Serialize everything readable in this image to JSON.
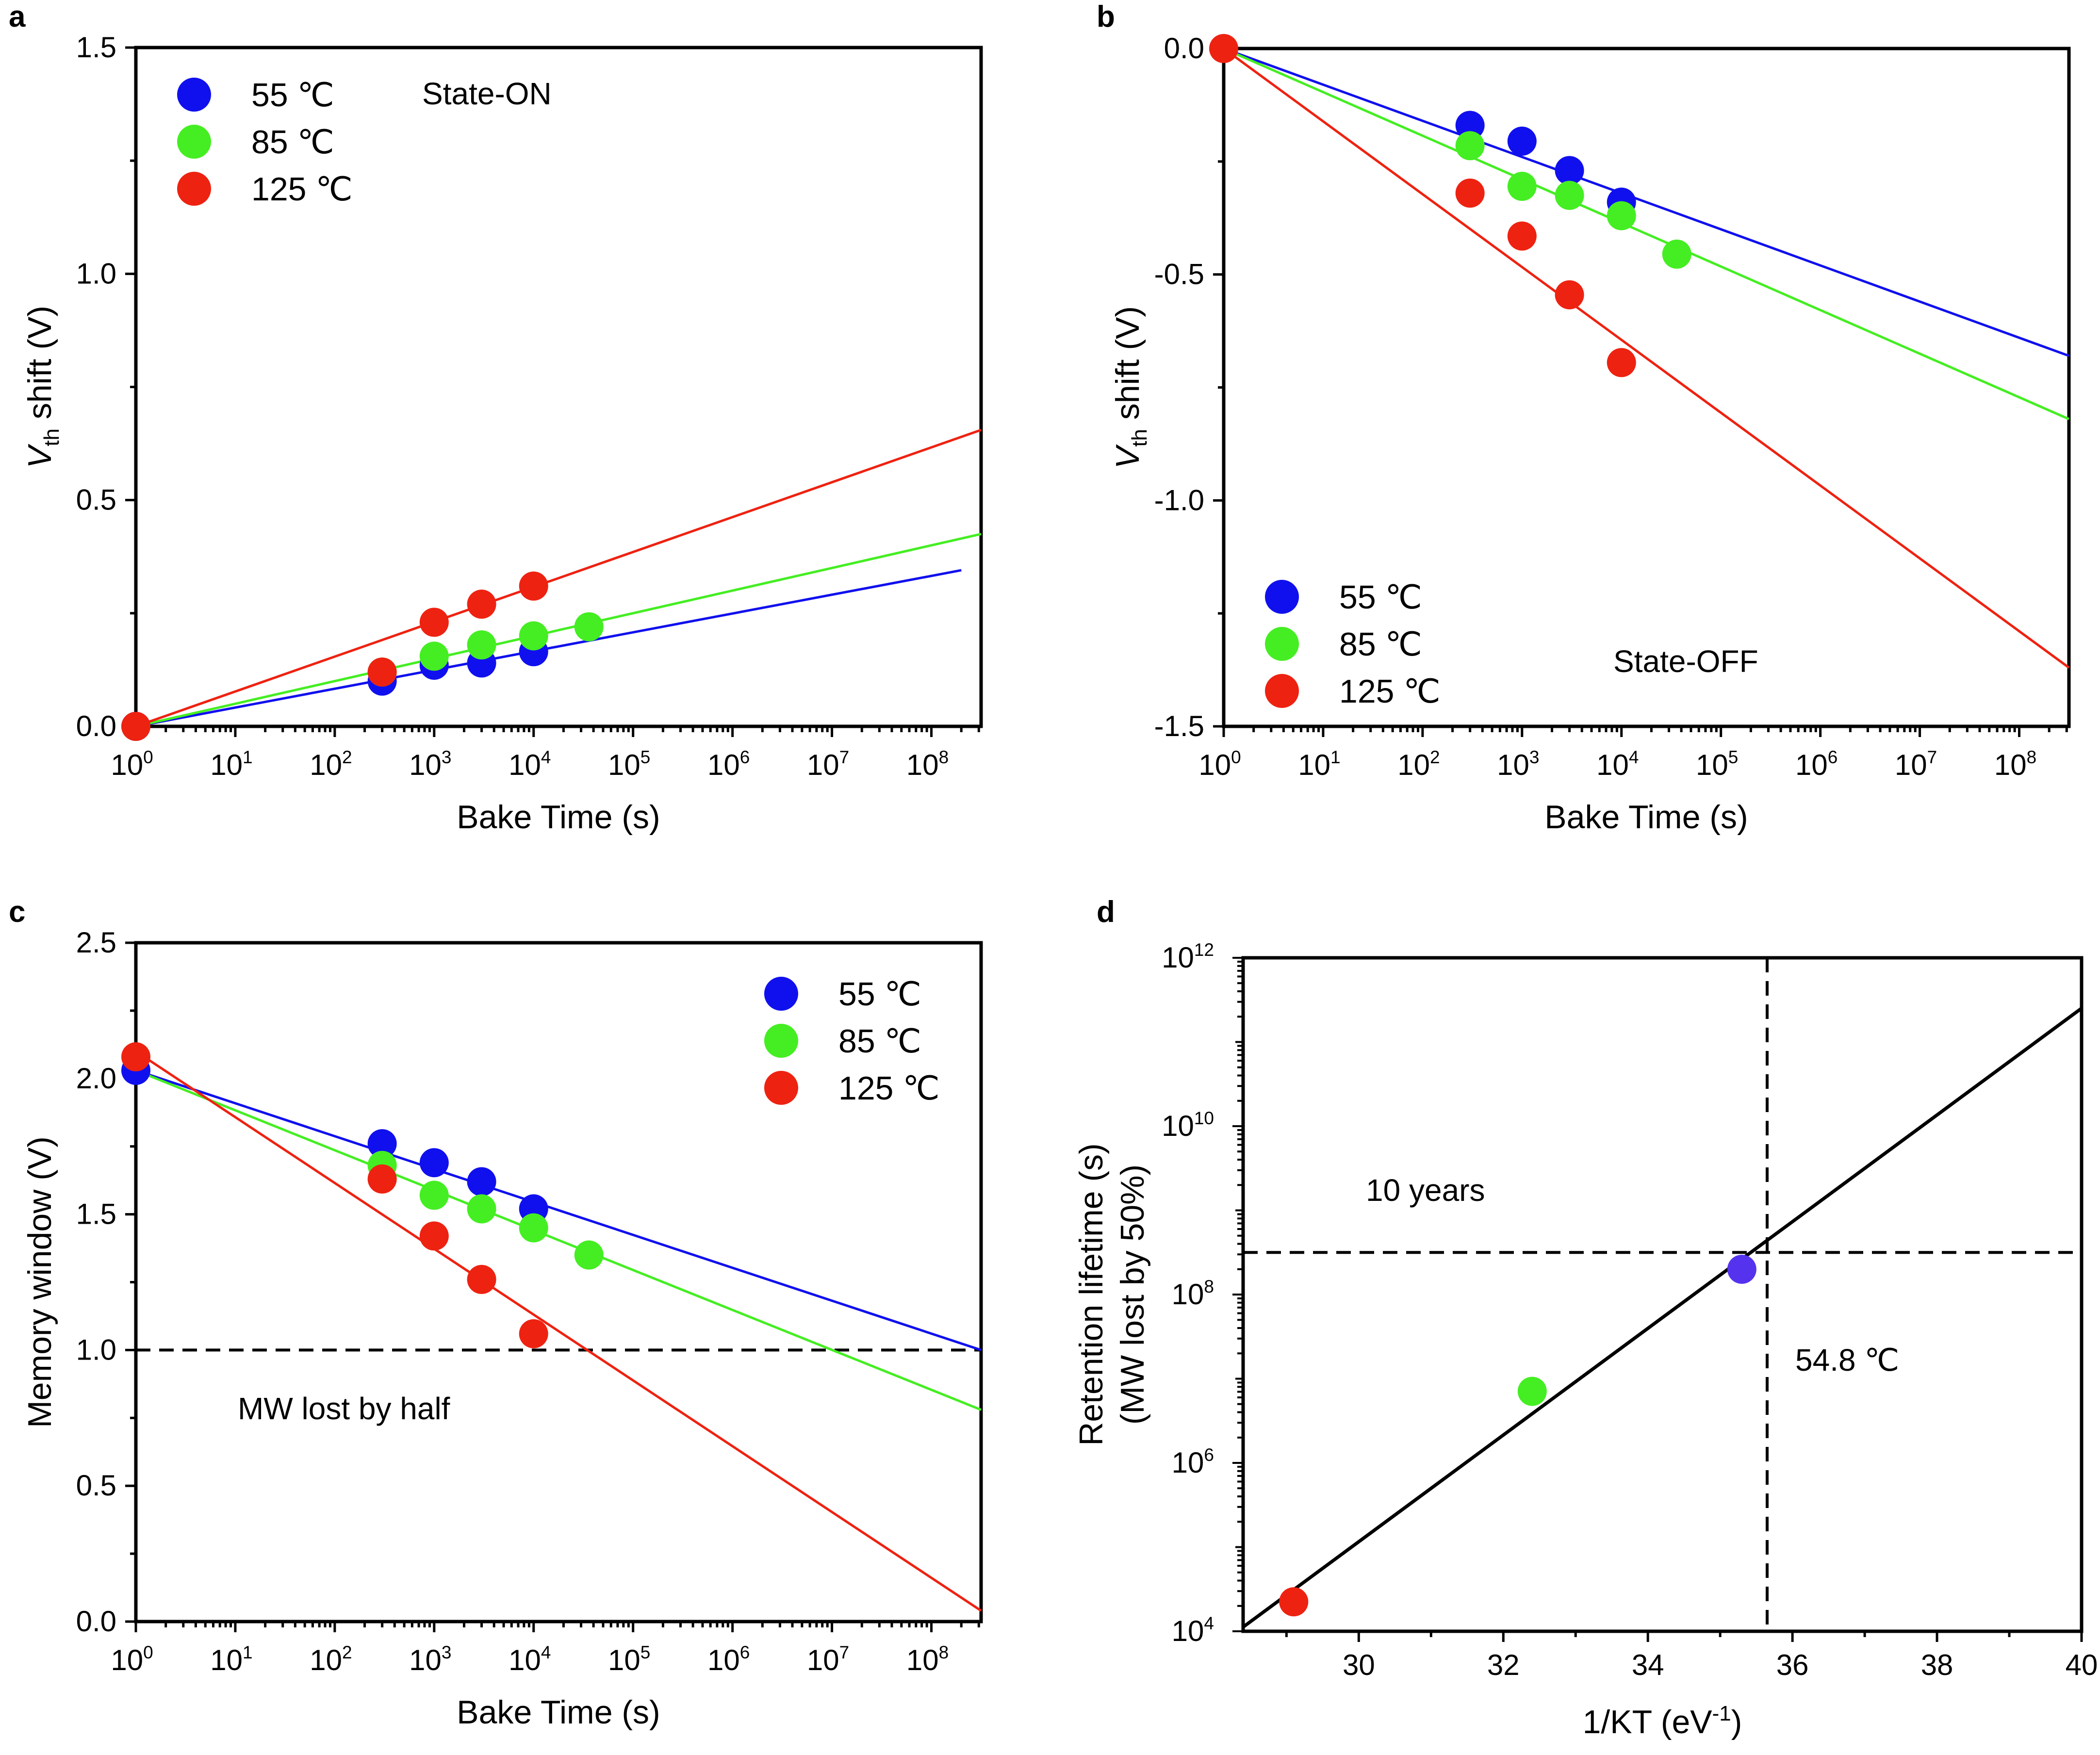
{
  "colors": {
    "s55": "#1010ee",
    "s85": "#44ee22",
    "s125": "#ee2211",
    "axis": "#000000",
    "d_s55": "#5533ee"
  },
  "panels": {
    "a": {
      "label": "a",
      "annotation": "State-ON"
    },
    "b": {
      "label": "b",
      "annotation": "State-OFF"
    },
    "c": {
      "label": "c",
      "annotation": "MW lost by half"
    },
    "d": {
      "label": "d",
      "annotation_years": "10 years",
      "annotation_temp": "54.8 ℃"
    }
  },
  "chart_data": [
    {
      "id": "a",
      "type": "scatter",
      "xscale": "log",
      "xlabel": "Bake Time (s)",
      "ylabel_main": "V",
      "ylabel_sub": "th",
      "ylabel_rest": " shift (V)",
      "xlim_log10": [
        0,
        8.5
      ],
      "ylim": [
        0,
        1.5
      ],
      "xticks_exp": [
        "0",
        "1",
        "2",
        "3",
        "4",
        "5",
        "6",
        "7",
        "8"
      ],
      "yticks": [
        "0.0",
        "0.5",
        "1.0",
        "1.5"
      ],
      "legend": {
        "position": "top-left",
        "entries": [
          "55 ℃",
          "85 ℃",
          "125 ℃"
        ]
      },
      "series": [
        {
          "name": "55 ℃",
          "color_key": "s55",
          "x": [
            1,
            300,
            1000,
            3000,
            10000
          ],
          "y": [
            0.0,
            0.1,
            0.135,
            0.14,
            0.165
          ],
          "fit": {
            "x": [
              1,
              200000000
            ],
            "y": [
              0.0,
              0.345
            ]
          }
        },
        {
          "name": "85 ℃",
          "color_key": "s85",
          "x": [
            300,
            1000,
            3000,
            10000,
            36000
          ],
          "y": [
            0.12,
            0.155,
            0.18,
            0.2,
            0.22
          ],
          "fit": {
            "x": [
              1,
              316000000
            ],
            "y": [
              0.0,
              0.425
            ]
          }
        },
        {
          "name": "125 ℃",
          "color_key": "s125",
          "x": [
            1,
            300,
            1000,
            3000,
            10000
          ],
          "y": [
            0.0,
            0.12,
            0.23,
            0.27,
            0.31
          ],
          "fit": {
            "x": [
              1,
              316000000
            ],
            "y": [
              0.0,
              0.655
            ]
          }
        }
      ]
    },
    {
      "id": "b",
      "type": "scatter",
      "xscale": "log",
      "xlabel": "Bake Time (s)",
      "ylabel_main": "V",
      "ylabel_sub": "th",
      "ylabel_rest": " shift (V)",
      "xlim_log10": [
        0,
        8.5
      ],
      "ylim": [
        -1.5,
        0
      ],
      "xticks_exp": [
        "0",
        "1",
        "2",
        "3",
        "4",
        "5",
        "6",
        "7",
        "8"
      ],
      "yticks": [
        "0.0",
        "-0.5",
        "-1.0",
        "-1.5"
      ],
      "legend": {
        "position": "bottom-left",
        "entries": [
          "55 ℃",
          "85 ℃",
          "125 ℃"
        ]
      },
      "series": [
        {
          "name": "55 ℃",
          "color_key": "s55",
          "x": [
            300,
            1000,
            3000,
            10000
          ],
          "y": [
            -0.17,
            -0.205,
            -0.27,
            -0.34
          ],
          "fit": {
            "x": [
              1,
              316000000
            ],
            "y": [
              0.0,
              -0.68
            ]
          }
        },
        {
          "name": "85 ℃",
          "color_key": "s85",
          "x": [
            300,
            1000,
            3000,
            10000,
            36000
          ],
          "y": [
            -0.215,
            -0.305,
            -0.325,
            -0.37,
            -0.455
          ],
          "fit": {
            "x": [
              1,
              316000000
            ],
            "y": [
              0.0,
              -0.82
            ]
          }
        },
        {
          "name": "125 ℃",
          "color_key": "s125",
          "x": [
            1,
            300,
            1000,
            3000,
            10000
          ],
          "y": [
            0.0,
            -0.32,
            -0.415,
            -0.545,
            -0.695
          ],
          "fit": {
            "x": [
              1,
              316000000
            ],
            "y": [
              0.0,
              -1.37
            ]
          }
        }
      ]
    },
    {
      "id": "c",
      "type": "scatter",
      "xscale": "log",
      "xlabel": "Bake Time (s)",
      "ylabel": "Memory window (V)",
      "xlim_log10": [
        0,
        8.5
      ],
      "ylim": [
        0,
        2.5
      ],
      "xticks_exp": [
        "0",
        "1",
        "2",
        "3",
        "4",
        "5",
        "6",
        "7",
        "8"
      ],
      "yticks": [
        "0.0",
        "0.5",
        "1.0",
        "1.5",
        "2.0",
        "2.5"
      ],
      "hline": 1.0,
      "legend": {
        "position": "top-right",
        "entries": [
          "55 ℃",
          "85 ℃",
          "125 ℃"
        ]
      },
      "series": [
        {
          "name": "55 ℃",
          "color_key": "s55",
          "x": [
            1,
            300,
            1000,
            3000,
            10000
          ],
          "y": [
            2.03,
            1.76,
            1.69,
            1.62,
            1.52
          ],
          "fit": {
            "x": [
              1,
              316000000
            ],
            "y": [
              2.03,
              1.0
            ]
          }
        },
        {
          "name": "85 ℃",
          "color_key": "s85",
          "x": [
            300,
            1000,
            3000,
            10000,
            36000
          ],
          "y": [
            1.68,
            1.57,
            1.52,
            1.45,
            1.35
          ],
          "fit": {
            "x": [
              1,
              316000000
            ],
            "y": [
              2.03,
              0.78
            ]
          }
        },
        {
          "name": "125 ℃",
          "color_key": "s125",
          "x": [
            1,
            300,
            1000,
            3000,
            10000
          ],
          "y": [
            2.08,
            1.63,
            1.42,
            1.26,
            1.06
          ],
          "fit": {
            "x": [
              1,
              316000000
            ],
            "y": [
              2.1,
              0.04
            ]
          }
        }
      ]
    },
    {
      "id": "d",
      "type": "scatter",
      "yscale": "log",
      "xlabel_main": "1/KT (eV",
      "xlabel_sup": "-1",
      "xlabel_end": ")",
      "ylabel_line1": "Retention lifetime (s)",
      "ylabel_line2": "(MW lost by 50%)",
      "xlim": [
        28.4,
        40
      ],
      "ylim_log10": [
        4,
        12
      ],
      "xticks": [
        "30",
        "32",
        "34",
        "36",
        "38",
        "40"
      ],
      "yticks_exp": [
        "4",
        "6",
        "8",
        "10",
        "12"
      ],
      "hline_log10": 8.5,
      "vline": 35.65,
      "points": [
        {
          "name": "125 ℃",
          "color_key": "s125",
          "x": 29.1,
          "y_log10": 4.35
        },
        {
          "name": "85 ℃",
          "color_key": "s85",
          "x": 32.4,
          "y_log10": 6.85
        },
        {
          "name": "55 ℃",
          "color_key": "d_s55",
          "x": 35.3,
          "y_log10": 8.3
        }
      ],
      "fit": {
        "x": [
          28.4,
          40
        ],
        "y_log10": [
          4.05,
          11.4
        ]
      }
    }
  ]
}
